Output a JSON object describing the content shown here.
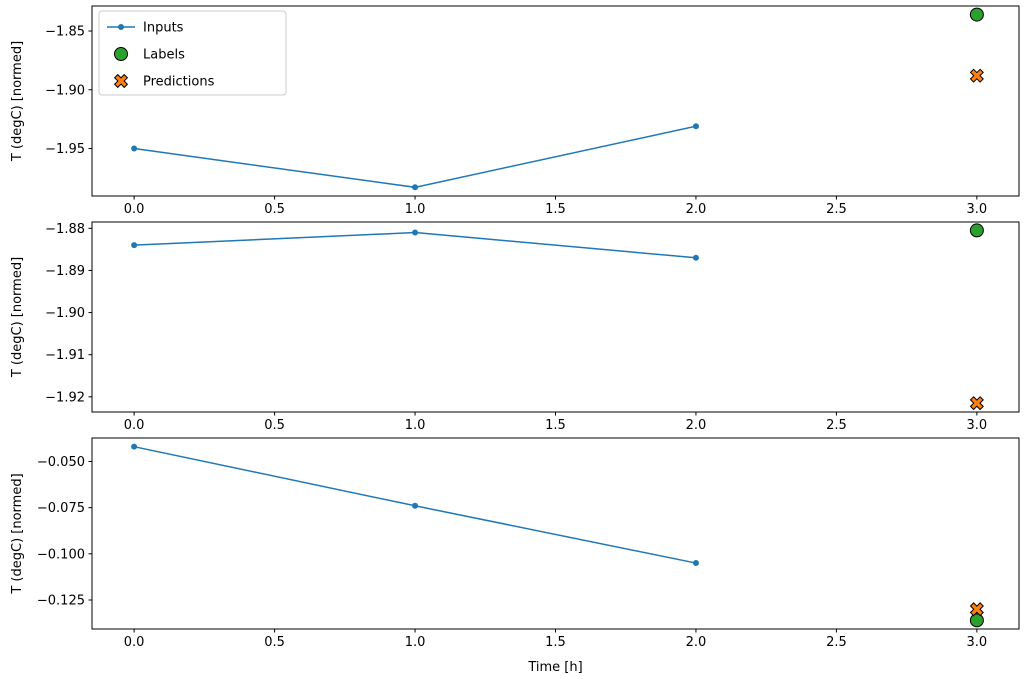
{
  "figure": {
    "background": "#ffffff",
    "frame_color": "#000000",
    "accent_colors": {
      "inputs": "#1f77b4",
      "labels": "#2ca02c",
      "predictions": "#ff7f0e"
    }
  },
  "legend": {
    "position": "upper-left-first-subplot",
    "border_color": "#cccccc",
    "entries": [
      {
        "label": "Inputs",
        "marker": "line-dot",
        "color": "#1f77b4"
      },
      {
        "label": "Labels",
        "marker": "circle",
        "color": "#2ca02c"
      },
      {
        "label": "Predictions",
        "marker": "x",
        "color": "#ff7f0e"
      }
    ]
  },
  "chart_data": [
    {
      "type": "line",
      "title": "",
      "xlabel": "",
      "ylabel": "T (degC) [normed]",
      "xlim": [
        -0.15,
        3.15
      ],
      "ylim": [
        -1.9904,
        -1.8287
      ],
      "xticks": [
        0.0,
        0.5,
        1.0,
        1.5,
        2.0,
        2.5,
        3.0
      ],
      "xtick_labels": [
        "0.0",
        "0.5",
        "1.0",
        "1.5",
        "2.0",
        "2.5",
        "3.0"
      ],
      "yticks": [
        -1.85,
        -1.9,
        -1.95
      ],
      "ytick_labels": [
        "−1.85",
        "−1.90",
        "−1.95"
      ],
      "grid": false,
      "legend": true,
      "series": [
        {
          "name": "Inputs",
          "kind": "line",
          "marker": "line-dot",
          "color": "#1f77b4",
          "x": [
            0,
            1,
            2
          ],
          "y": [
            -1.95,
            -1.983,
            -1.931
          ]
        },
        {
          "name": "Labels",
          "kind": "scatter",
          "marker": "circle",
          "color": "#2ca02c",
          "x": [
            3
          ],
          "y": [
            -1.836
          ]
        },
        {
          "name": "Predictions",
          "kind": "scatter",
          "marker": "x",
          "color": "#ff7f0e",
          "x": [
            3
          ],
          "y": [
            -1.888
          ]
        }
      ]
    },
    {
      "type": "line",
      "title": "",
      "xlabel": "",
      "ylabel": "T (degC) [normed]",
      "xlim": [
        -0.15,
        3.15
      ],
      "ylim": [
        -1.9236,
        -1.8785
      ],
      "xticks": [
        0.0,
        0.5,
        1.0,
        1.5,
        2.0,
        2.5,
        3.0
      ],
      "xtick_labels": [
        "0.0",
        "0.5",
        "1.0",
        "1.5",
        "2.0",
        "2.5",
        "3.0"
      ],
      "yticks": [
        -1.88,
        -1.89,
        -1.9,
        -1.91,
        -1.92
      ],
      "ytick_labels": [
        "−1.88",
        "−1.89",
        "−1.90",
        "−1.91",
        "−1.92"
      ],
      "grid": false,
      "legend": false,
      "series": [
        {
          "name": "Inputs",
          "kind": "line",
          "marker": "line-dot",
          "color": "#1f77b4",
          "x": [
            0,
            1,
            2
          ],
          "y": [
            -1.884,
            -1.881,
            -1.887
          ]
        },
        {
          "name": "Labels",
          "kind": "scatter",
          "marker": "circle",
          "color": "#2ca02c",
          "x": [
            3
          ],
          "y": [
            -1.8805
          ]
        },
        {
          "name": "Predictions",
          "kind": "scatter",
          "marker": "x",
          "color": "#ff7f0e",
          "x": [
            3
          ],
          "y": [
            -1.9215
          ]
        }
      ]
    },
    {
      "type": "line",
      "title": "",
      "xlabel": "Time [h]",
      "ylabel": "T (degC) [normed]",
      "xlim": [
        -0.15,
        3.15
      ],
      "ylim": [
        -0.1407,
        -0.0373
      ],
      "xticks": [
        0.0,
        0.5,
        1.0,
        1.5,
        2.0,
        2.5,
        3.0
      ],
      "xtick_labels": [
        "0.0",
        "0.5",
        "1.0",
        "1.5",
        "2.0",
        "2.5",
        "3.0"
      ],
      "yticks": [
        -0.05,
        -0.075,
        -0.1,
        -0.125
      ],
      "ytick_labels": [
        "−0.050",
        "−0.075",
        "−0.100",
        "−0.125"
      ],
      "grid": false,
      "legend": false,
      "series": [
        {
          "name": "Inputs",
          "kind": "line",
          "marker": "line-dot",
          "color": "#1f77b4",
          "x": [
            0,
            1,
            2
          ],
          "y": [
            -0.042,
            -0.074,
            -0.105
          ]
        },
        {
          "name": "Labels",
          "kind": "scatter",
          "marker": "circle",
          "color": "#2ca02c",
          "x": [
            3
          ],
          "y": [
            -0.136
          ]
        },
        {
          "name": "Predictions",
          "kind": "scatter",
          "marker": "x",
          "color": "#ff7f0e",
          "x": [
            3
          ],
          "y": [
            -0.13
          ]
        }
      ]
    }
  ]
}
